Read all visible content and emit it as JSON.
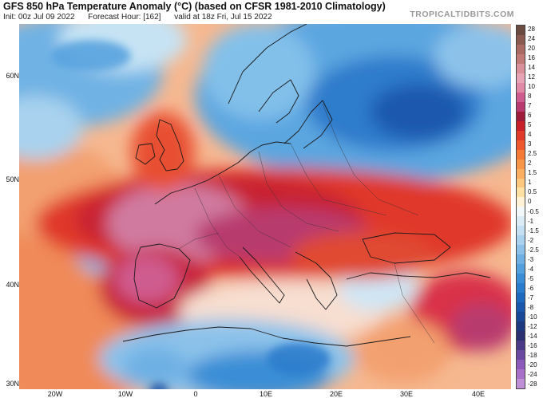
{
  "header": {
    "title": "GFS 850 hPa Temperature Anomaly (°C) (based on CFSR 1981-2010 Climatology)",
    "init": "Init: 00z Jul 09 2022",
    "forecast_hour": "Forecast Hour: [162]",
    "valid": "valid at 18z Fri, Jul 15 2022",
    "brand": "TROPICALTIDBITS.COM"
  },
  "axes": {
    "lat_labels": [
      "60N",
      "50N",
      "40N",
      "30N"
    ],
    "lon_labels": [
      "20W",
      "10W",
      "0",
      "10E",
      "20E",
      "30E",
      "40E"
    ]
  },
  "colorbar": {
    "labels": [
      "28",
      "24",
      "20",
      "16",
      "14",
      "12",
      "10",
      "8",
      "7",
      "6",
      "5",
      "4",
      "3",
      "2.5",
      "2",
      "1.5",
      "1",
      "0.5",
      "0",
      "-0.5",
      "-1",
      "-1.5",
      "-2",
      "-2.5",
      "-3",
      "-4",
      "-5",
      "-6",
      "-7",
      "-8",
      "-10",
      "-12",
      "-14",
      "-16",
      "-18",
      "-20",
      "-24",
      "-28"
    ],
    "colors": [
      "#6b4a3f",
      "#8a5a50",
      "#a86a62",
      "#c27a78",
      "#d9909a",
      "#e6a4b6",
      "#e08aa8",
      "#cf5c8e",
      "#b83a6e",
      "#9e1c3a",
      "#c8202a",
      "#e03a2a",
      "#ee5a2e",
      "#f47a36",
      "#f89648",
      "#fab060",
      "#fcc87e",
      "#fde0a2",
      "#fff2d6",
      "#f2f7fa",
      "#dcecf6",
      "#c4e0f2",
      "#a8d2ee",
      "#8cc2ea",
      "#6eb0e4",
      "#52a0de",
      "#3a8ed6",
      "#2a7ccc",
      "#1e6abf",
      "#1a58ae",
      "#1a4898",
      "#1c3a80",
      "#2a3070",
      "#4a3a88",
      "#6a4aa0",
      "#8c5ab8",
      "#a870c8",
      "#c090d6"
    ]
  }
}
